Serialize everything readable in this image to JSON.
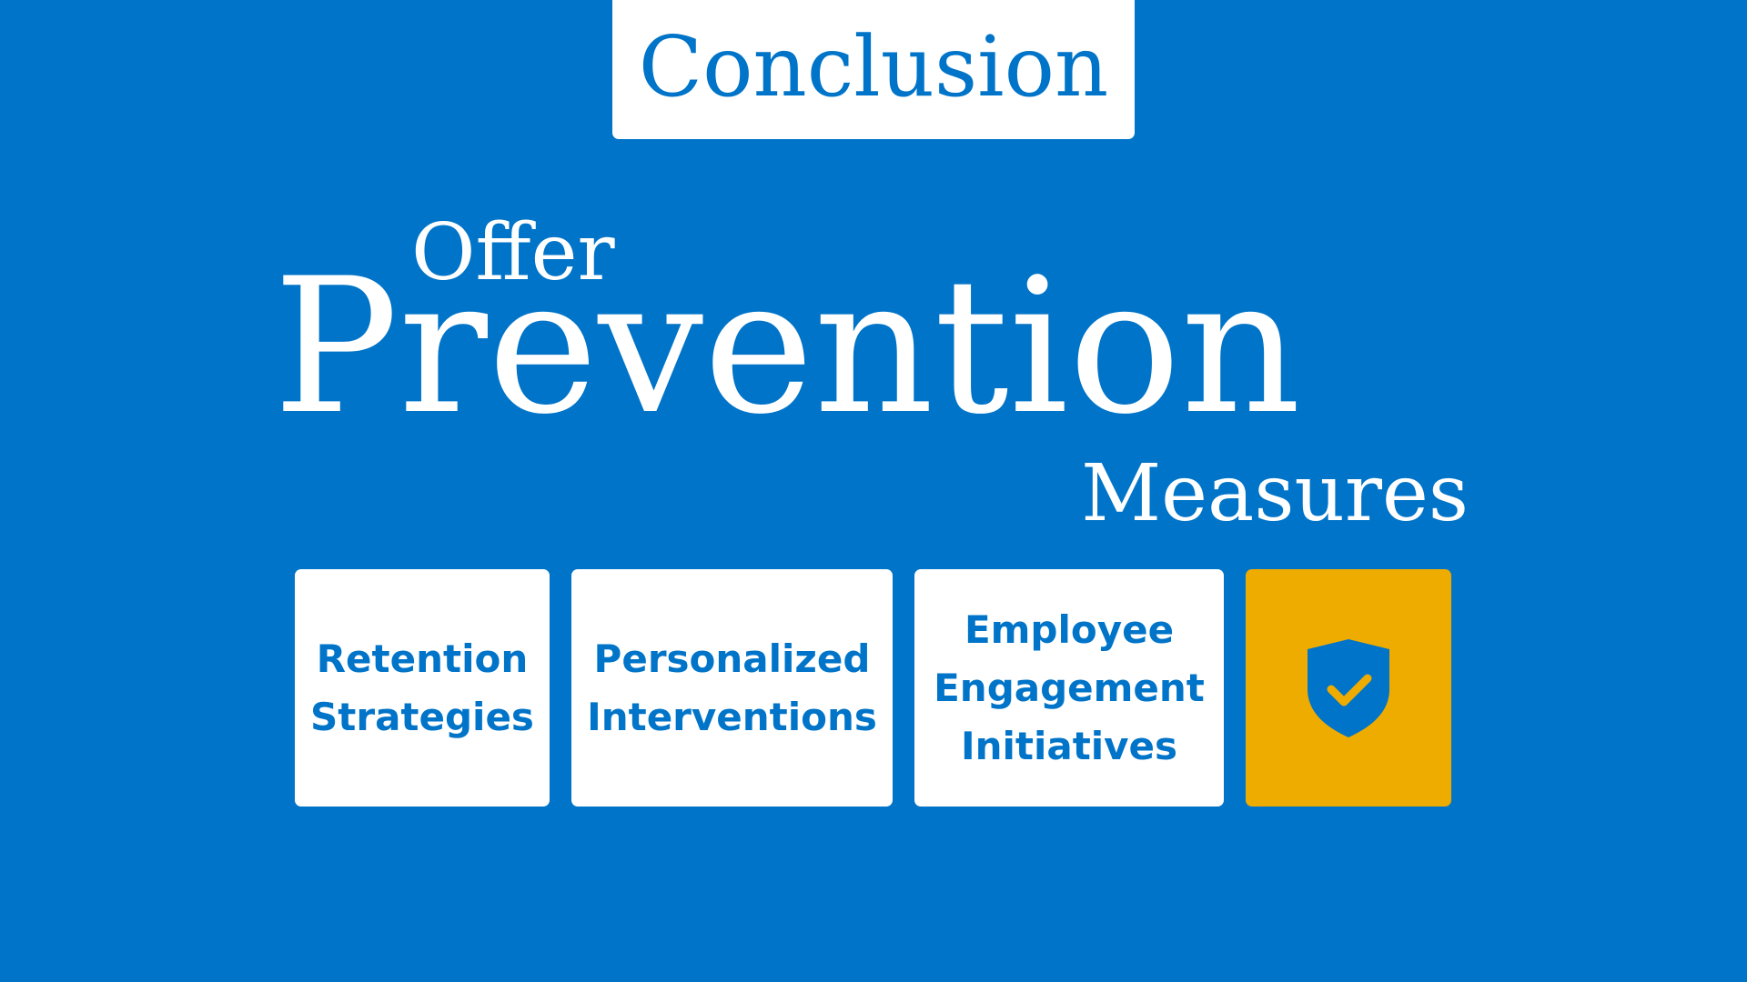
{
  "title": "Conclusion",
  "headline": {
    "offer": "Offer",
    "prevention": "Prevention",
    "measures": "Measures"
  },
  "cards": [
    {
      "label": "Retention\nStrategies"
    },
    {
      "label": "Personalized\nInterventions"
    },
    {
      "label": "Employee\nEngagement\nInitiatives"
    },
    {
      "icon": "shield-check-icon"
    }
  ],
  "colors": {
    "background": "#0074c8",
    "card": "#ffffff",
    "accent": "#efac00",
    "text_on_card": "#0074c8"
  }
}
